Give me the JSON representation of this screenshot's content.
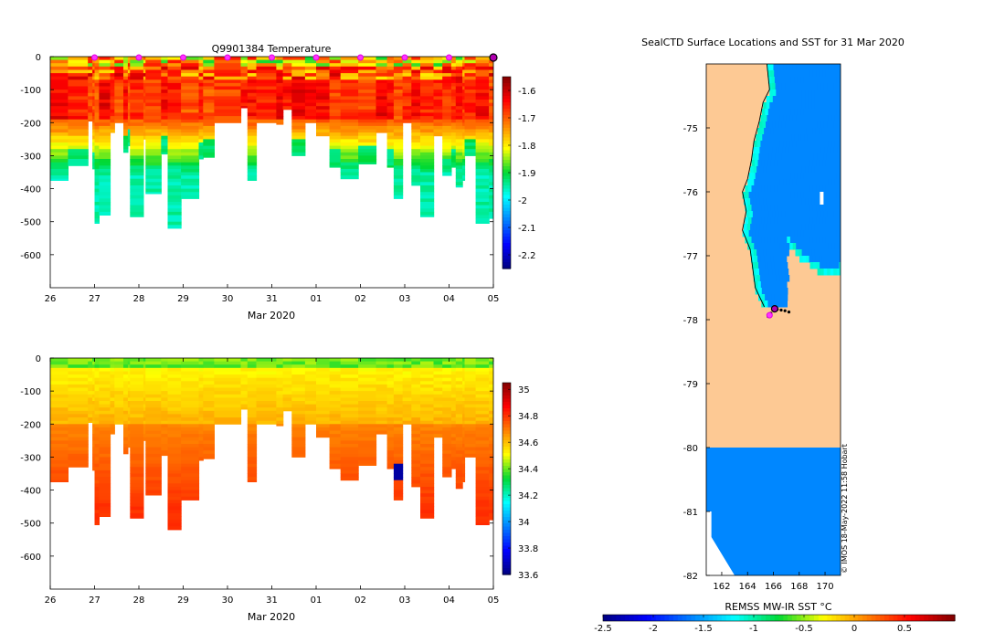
{
  "charts": {
    "temperature": {
      "title": "Q9901384  Temperature",
      "type": "heatmap",
      "xlabel": "Mar 2020",
      "x_ticks": [
        "26",
        "27",
        "28",
        "29",
        "30",
        "31",
        "01",
        "02",
        "03",
        "04",
        "05"
      ],
      "y_ticks": [
        "0",
        "-100",
        "-200",
        "-300",
        "-400",
        "-500",
        "-600"
      ],
      "ylim": [
        -700,
        0
      ],
      "colorbar": {
        "range": [
          -2.25,
          -1.55
        ],
        "ticks": [
          "-1.6",
          "-1.7",
          "-1.8",
          "-1.9",
          "-2",
          "-2.1",
          "-2.2"
        ]
      }
    },
    "salinity": {
      "type": "heatmap",
      "xlabel": "Mar 2020",
      "x_ticks": [
        "26",
        "27",
        "28",
        "29",
        "30",
        "31",
        "01",
        "02",
        "03",
        "04",
        "05"
      ],
      "y_ticks": [
        "0",
        "-100",
        "-200",
        "-300",
        "-400",
        "-500",
        "-600"
      ],
      "ylim": [
        -700,
        0
      ],
      "colorbar": {
        "range": [
          33.6,
          35.05
        ],
        "ticks": [
          "35",
          "34.8",
          "34.6",
          "34.4",
          "34.2",
          "34",
          "33.8",
          "33.6"
        ]
      }
    },
    "map": {
      "title": "SealCTD Surface Locations and SST for 31 Mar 2020",
      "lat_ticks": [
        "-75",
        "-76",
        "-77",
        "-78",
        "-79",
        "-80",
        "-81",
        "-82"
      ],
      "lon_ticks": [
        "162",
        "164",
        "166",
        "168",
        "170"
      ],
      "colorbar_label": "REMSS MW-IR SST °C",
      "colorbar_ticks": [
        "-2.5",
        "-2",
        "-1.5",
        "-1",
        "-0.5",
        "0",
        "0.5"
      ],
      "credit": "© IMOS 18-May-2022 11:58 Hobart"
    }
  },
  "chart_data": [
    {
      "type": "heatmap",
      "title": "Q9901384  Temperature",
      "xlabel": "Mar 2020",
      "ylabel": "",
      "x_range_days": [
        0,
        10
      ],
      "ylim": [
        -700,
        0
      ],
      "value_range": [
        -2.25,
        -1.55
      ],
      "surface_markers_day": [
        1,
        2,
        3,
        4,
        5,
        6,
        7,
        8,
        9
      ],
      "last_profile_day": 10,
      "profiles_max_depth": [
        [
          0.0,
          375
        ],
        [
          0.4,
          330
        ],
        [
          0.85,
          195
        ],
        [
          0.95,
          340
        ],
        [
          1.0,
          505
        ],
        [
          1.1,
          480
        ],
        [
          1.35,
          230
        ],
        [
          1.45,
          200
        ],
        [
          1.65,
          290
        ],
        [
          1.75,
          270
        ],
        [
          1.8,
          485
        ],
        [
          2.1,
          250
        ],
        [
          2.15,
          415
        ],
        [
          2.5,
          295
        ],
        [
          2.65,
          520
        ],
        [
          2.95,
          430
        ],
        [
          3.35,
          310
        ],
        [
          3.45,
          305
        ],
        [
          3.7,
          200
        ],
        [
          4.3,
          155
        ],
        [
          4.45,
          375
        ],
        [
          4.65,
          200
        ],
        [
          5.1,
          205
        ],
        [
          5.25,
          160
        ],
        [
          5.45,
          300
        ],
        [
          5.75,
          200
        ],
        [
          6.0,
          240
        ],
        [
          6.3,
          335
        ],
        [
          6.55,
          370
        ],
        [
          6.95,
          325
        ],
        [
          7.35,
          230
        ],
        [
          7.6,
          335
        ],
        [
          7.75,
          430
        ],
        [
          7.95,
          200
        ],
        [
          8.15,
          390
        ],
        [
          8.35,
          485
        ],
        [
          8.65,
          240
        ],
        [
          8.85,
          360
        ],
        [
          9.05,
          335
        ],
        [
          9.15,
          395
        ],
        [
          9.3,
          375
        ],
        [
          9.35,
          300
        ],
        [
          9.6,
          505
        ],
        [
          9.9,
          490
        ]
      ]
    },
    {
      "type": "heatmap",
      "title": "",
      "xlabel": "Mar 2020",
      "ylabel": "",
      "x_range_days": [
        0,
        10
      ],
      "ylim": [
        -700,
        0
      ],
      "value_range": [
        33.6,
        35.05
      ],
      "profiles_max_depth": [
        [
          0.0,
          375
        ],
        [
          0.4,
          330
        ],
        [
          0.85,
          195
        ],
        [
          0.95,
          340
        ],
        [
          1.0,
          505
        ],
        [
          1.1,
          480
        ],
        [
          1.35,
          230
        ],
        [
          1.45,
          200
        ],
        [
          1.65,
          290
        ],
        [
          1.75,
          270
        ],
        [
          1.8,
          485
        ],
        [
          2.1,
          250
        ],
        [
          2.15,
          415
        ],
        [
          2.5,
          295
        ],
        [
          2.65,
          520
        ],
        [
          2.95,
          430
        ],
        [
          3.35,
          310
        ],
        [
          3.45,
          305
        ],
        [
          3.7,
          200
        ],
        [
          4.3,
          155
        ],
        [
          4.45,
          375
        ],
        [
          4.65,
          200
        ],
        [
          5.1,
          205
        ],
        [
          5.25,
          160
        ],
        [
          5.45,
          300
        ],
        [
          5.75,
          200
        ],
        [
          6.0,
          240
        ],
        [
          6.3,
          335
        ],
        [
          6.55,
          370
        ],
        [
          6.95,
          325
        ],
        [
          7.35,
          230
        ],
        [
          7.6,
          335
        ],
        [
          7.75,
          430
        ],
        [
          7.95,
          200
        ],
        [
          8.15,
          390
        ],
        [
          8.35,
          485
        ],
        [
          8.65,
          240
        ],
        [
          8.85,
          360
        ],
        [
          9.05,
          335
        ],
        [
          9.15,
          395
        ],
        [
          9.3,
          375
        ],
        [
          9.35,
          300
        ],
        [
          9.6,
          505
        ],
        [
          9.9,
          490
        ]
      ]
    },
    {
      "type": "heatmap",
      "title": "SealCTD Surface Locations and SST for 31 Mar 2020",
      "xlabel": "",
      "ylabel": "",
      "lon_range": [
        160.8,
        171.2
      ],
      "lat_range": [
        -82,
        -74
      ],
      "colorbar_range": [
        -2.5,
        1.0
      ],
      "colorbar_label": "REMSS MW-IR SST °C",
      "open_water_sst": -1.6,
      "coast_margin_sst": -1.05,
      "coastline_lon_by_lat": [
        [
          -74.0,
          165.5
        ],
        [
          -74.4,
          165.7
        ],
        [
          -74.6,
          165.2
        ],
        [
          -74.9,
          164.9
        ],
        [
          -75.2,
          164.5
        ],
        [
          -75.5,
          164.3
        ],
        [
          -75.8,
          164.0
        ],
        [
          -76.0,
          163.6
        ],
        [
          -76.3,
          163.9
        ],
        [
          -76.6,
          163.6
        ],
        [
          -76.9,
          164.2
        ],
        [
          -77.2,
          164.4
        ],
        [
          -77.5,
          164.6
        ],
        [
          -77.8,
          165.3
        ]
      ],
      "ice_shelf_front_lon_by_lat": [
        [
          -76.8,
          167.2
        ],
        [
          -77.0,
          168.0
        ],
        [
          -77.2,
          169.2
        ],
        [
          -77.3,
          170.0
        ],
        [
          -77.2,
          171.2
        ]
      ],
      "ice_shelf_edge_lat": -80.0,
      "surface_positions": [
        [
          165.6,
          -77.95
        ],
        [
          165.8,
          -77.9
        ],
        [
          166.0,
          -77.85
        ],
        [
          166.3,
          -77.84
        ],
        [
          166.6,
          -77.85
        ],
        [
          166.9,
          -77.86
        ],
        [
          167.2,
          -77.88
        ]
      ],
      "last_position": [
        166.1,
        -77.83
      ]
    }
  ]
}
